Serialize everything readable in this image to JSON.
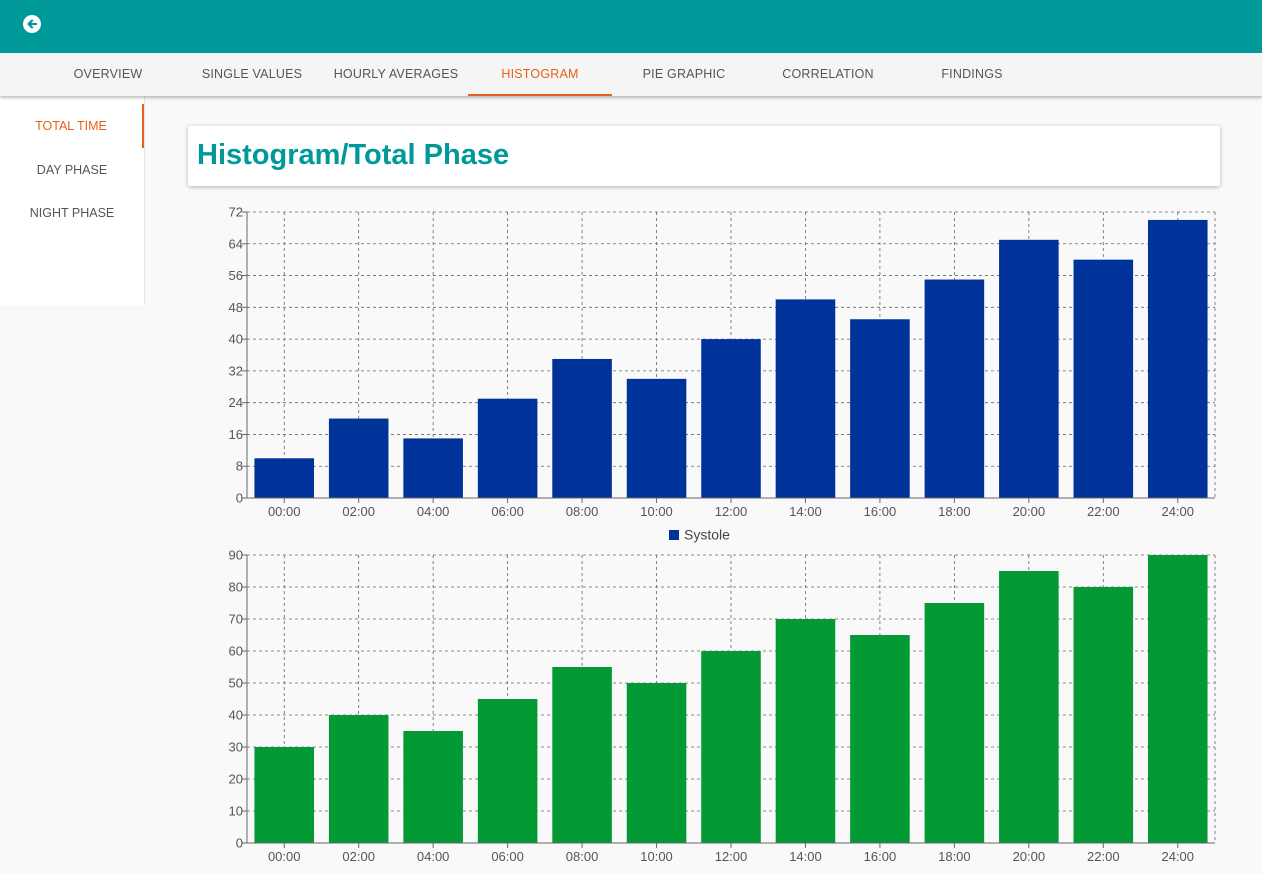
{
  "app": {
    "back_icon": "arrow-left-circle-icon",
    "primary_color": "#009999",
    "accent_color": "#e8611a"
  },
  "tabs": [
    {
      "label": "OVERVIEW",
      "active": false
    },
    {
      "label": "SINGLE VALUES",
      "active": false
    },
    {
      "label": "HOURLY AVERAGES",
      "active": false
    },
    {
      "label": "HISTOGRAM",
      "active": true
    },
    {
      "label": "PIE GRAPHIC",
      "active": false
    },
    {
      "label": "CORRELATION",
      "active": false
    },
    {
      "label": "FINDINGS",
      "active": false
    }
  ],
  "sidebar": {
    "items": [
      {
        "label": "TOTAL TIME",
        "active": true
      },
      {
        "label": "DAY PHASE",
        "active": false
      },
      {
        "label": "NIGHT PHASE",
        "active": false
      }
    ]
  },
  "page": {
    "title": "Histogram/Total Phase"
  },
  "chart_data": [
    {
      "type": "bar",
      "categories": [
        "00:00",
        "02:00",
        "04:00",
        "06:00",
        "08:00",
        "10:00",
        "12:00",
        "14:00",
        "16:00",
        "18:00",
        "20:00",
        "22:00",
        "24:00"
      ],
      "series": [
        {
          "name": "Systole",
          "color": "#00339a",
          "values": [
            10,
            20,
            15,
            25,
            35,
            30,
            40,
            50,
            45,
            55,
            65,
            60,
            70
          ]
        }
      ],
      "ylim": [
        0,
        72
      ],
      "yticks": [
        0,
        8,
        16,
        24,
        32,
        40,
        48,
        56,
        64,
        72
      ],
      "grid": true,
      "legend": "bottom"
    },
    {
      "type": "bar",
      "categories": [
        "00:00",
        "02:00",
        "04:00",
        "06:00",
        "08:00",
        "10:00",
        "12:00",
        "14:00",
        "16:00",
        "18:00",
        "20:00",
        "22:00",
        "24:00"
      ],
      "series": [
        {
          "color": "#039a36",
          "values": [
            30,
            40,
            35,
            45,
            55,
            50,
            60,
            70,
            65,
            75,
            85,
            80,
            90
          ]
        }
      ],
      "ylim": [
        0,
        90
      ],
      "yticks": [
        0,
        10,
        20,
        30,
        40,
        50,
        60,
        70,
        80,
        90
      ],
      "grid": true
    }
  ]
}
